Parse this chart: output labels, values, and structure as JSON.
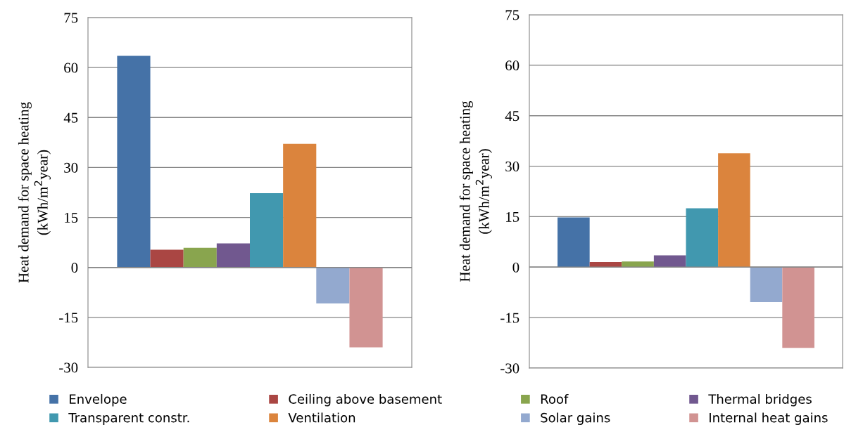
{
  "chart_data": [
    {
      "type": "bar",
      "categories": [
        null
      ],
      "ylabel": "Heat demand for space heating\n(kWh/m$^{2}$year)",
      "ylim": [
        -30,
        75
      ],
      "yticks": [
        -30,
        -15,
        0,
        15,
        30,
        45,
        60,
        75
      ],
      "grid": "y",
      "legend": "bottom",
      "tick_labels": "y",
      "series": [
        {
          "name": "Envelope",
          "color": "#4572a7",
          "values": [
            63.5
          ]
        },
        {
          "name": "Ceiling above basement",
          "color": "#aa4643",
          "values": [
            5.3
          ]
        },
        {
          "name": "Roof",
          "color": "#89a54e",
          "values": [
            5.9
          ]
        },
        {
          "name": "Thermal bridges",
          "color": "#71588f",
          "values": [
            7.2
          ]
        },
        {
          "name": "Transparent constr.",
          "color": "#4198af",
          "values": [
            22.3
          ]
        },
        {
          "name": "Ventilation",
          "color": "#db843d",
          "values": [
            37.1
          ]
        },
        {
          "name": "Solar gains",
          "color": "#93a9cf",
          "values": [
            -10.8
          ]
        },
        {
          "name": "Internal heat gains",
          "color": "#d19392",
          "values": [
            -24.0
          ]
        }
      ]
    },
    {
      "type": "bar",
      "categories": [
        null
      ],
      "ylabel": "Heat demand for space heating\n(kWh/m$^{2}$year)",
      "ylim": [
        -30,
        75
      ],
      "yticks": [
        -30,
        -15,
        0,
        15,
        30,
        45,
        60,
        75
      ],
      "grid": "y",
      "tick_labels": "y",
      "series": [
        {
          "color": "#4572a7",
          "values": [
            14.8
          ]
        },
        {
          "color": "#aa4643",
          "values": [
            1.5
          ]
        },
        {
          "color": "#89a54e",
          "values": [
            1.7
          ]
        },
        {
          "color": "#71588f",
          "values": [
            3.5
          ]
        },
        {
          "color": "#4198af",
          "values": [
            17.5
          ]
        },
        {
          "color": "#db843d",
          "values": [
            33.8
          ]
        },
        {
          "color": "#93a9cf",
          "values": [
            -10.4
          ]
        },
        {
          "color": "#d19392",
          "values": [
            -24.0
          ]
        }
      ]
    }
  ]
}
